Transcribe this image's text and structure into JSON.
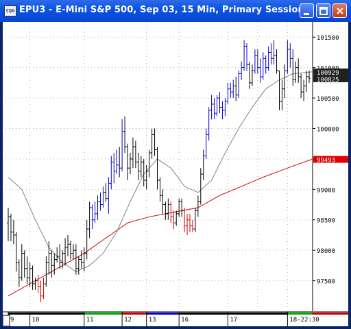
{
  "window": {
    "title": "EPU3 - E-Mini S&P 500, Sep 03, 15 Min, Primary Session",
    "app_icon_text": "CQG",
    "buttons": [
      "minimize",
      "maximize",
      "close"
    ]
  },
  "colors": {
    "up_bar": "#0000cc",
    "neutral_bar": "#000000",
    "down_bar": "#cc0000",
    "moving_avg_short": "#808080",
    "moving_avg_long": "#cc0000",
    "axis_highlight_last": "#202020",
    "axis_highlight_ma": "#e00000"
  },
  "chart_data": {
    "type": "candlestick-bars",
    "title": "EPU3 - E-Mini S&P 500, Sep 03, 15 Min, Primary Session",
    "y_ticks": [
      "101500",
      "101000",
      "100500",
      "100000",
      "99500",
      "99000",
      "98500",
      "98000",
      "97500"
    ],
    "y_tick_values": [
      101500,
      101000,
      100500,
      100000,
      99500,
      99000,
      98500,
      98000,
      97500
    ],
    "ylim": [
      97000,
      101750
    ],
    "x_ticks": [
      "9",
      "10",
      "11",
      "12",
      "13",
      "16",
      "17",
      "18-22:30"
    ],
    "x_session_colors": [
      "#000000",
      "#000000",
      "#00b000",
      "#cc0000",
      "#0000cc",
      "#000000",
      "#000000",
      "#00b000"
    ],
    "price_labels": [
      {
        "text": "100929",
        "value": 100929,
        "style": "dark"
      },
      {
        "text": "100825",
        "value": 100825,
        "style": "dark"
      },
      {
        "text": "99493",
        "value": 99493,
        "style": "red"
      }
    ],
    "bars": [
      [
        98450,
        98700,
        98150,
        98550,
        "k"
      ],
      [
        98550,
        98600,
        98150,
        98300,
        "k"
      ],
      [
        98300,
        98500,
        98100,
        98250,
        "k"
      ],
      [
        98250,
        98300,
        97650,
        97800,
        "k"
      ],
      [
        97800,
        97850,
        97400,
        97550,
        "k"
      ],
      [
        97550,
        98100,
        97500,
        97950,
        "k"
      ],
      [
        97950,
        98000,
        97550,
        97700,
        "k"
      ],
      [
        97700,
        97900,
        97450,
        97550,
        "k"
      ],
      [
        97550,
        97800,
        97400,
        97700,
        "k"
      ],
      [
        97700,
        97750,
        97350,
        97450,
        "k"
      ],
      [
        97450,
        97550,
        97350,
        97500,
        "k"
      ],
      [
        97500,
        97600,
        97300,
        97400,
        "r"
      ],
      [
        97400,
        97500,
        97150,
        97250,
        "r"
      ],
      [
        97250,
        97550,
        97200,
        97450,
        "r"
      ],
      [
        97450,
        97900,
        97400,
        97800,
        "k"
      ],
      [
        97800,
        98150,
        97600,
        97950,
        "k"
      ],
      [
        97950,
        98000,
        97550,
        97750,
        "k"
      ],
      [
        97750,
        97950,
        97600,
        97850,
        "k"
      ],
      [
        97850,
        98050,
        97800,
        97900,
        "k"
      ],
      [
        97900,
        98100,
        97700,
        97800,
        "k"
      ],
      [
        97800,
        98000,
        97700,
        97950,
        "k"
      ],
      [
        97950,
        98200,
        97750,
        98050,
        "k"
      ],
      [
        98050,
        98250,
        97900,
        98100,
        "k"
      ],
      [
        98100,
        98150,
        97850,
        97950,
        "k"
      ],
      [
        97950,
        98100,
        97850,
        98000,
        "k"
      ],
      [
        98000,
        98100,
        97600,
        97700,
        "k"
      ],
      [
        97700,
        97900,
        97600,
        97850,
        "k"
      ],
      [
        97850,
        98000,
        97700,
        97800,
        "k"
      ],
      [
        97800,
        98050,
        97650,
        97950,
        "k"
      ],
      [
        97950,
        98500,
        97850,
        98350,
        "k"
      ],
      [
        98350,
        98800,
        98200,
        98700,
        "k"
      ],
      [
        98700,
        98750,
        98350,
        98500,
        "b"
      ],
      [
        98500,
        98800,
        98450,
        98600,
        "b"
      ],
      [
        98600,
        98900,
        98500,
        98800,
        "b"
      ],
      [
        98800,
        98950,
        98650,
        98750,
        "b"
      ],
      [
        98750,
        99050,
        98700,
        98950,
        "b"
      ],
      [
        98950,
        99100,
        98800,
        98850,
        "k"
      ],
      [
        98850,
        99200,
        98600,
        99100,
        "b"
      ],
      [
        99100,
        99550,
        99000,
        99450,
        "b"
      ],
      [
        99450,
        99600,
        99100,
        99300,
        "b"
      ],
      [
        99300,
        99650,
        99250,
        99400,
        "b"
      ],
      [
        99400,
        99700,
        99200,
        99350,
        "k"
      ],
      [
        99350,
        100150,
        99300,
        99950,
        "b"
      ],
      [
        99950,
        100200,
        99600,
        99700,
        "k"
      ],
      [
        99700,
        99750,
        99150,
        99350,
        "k"
      ],
      [
        99350,
        99600,
        99250,
        99500,
        "k"
      ],
      [
        99500,
        99850,
        99350,
        99700,
        "k"
      ],
      [
        99700,
        99800,
        99350,
        99450,
        "k"
      ],
      [
        99450,
        99600,
        99150,
        99300,
        "k"
      ],
      [
        99300,
        99550,
        99200,
        99450,
        "k"
      ],
      [
        99450,
        99500,
        99050,
        99150,
        "k"
      ],
      [
        99150,
        99400,
        99000,
        99300,
        "k"
      ],
      [
        99300,
        99650,
        99200,
        99600,
        "k"
      ],
      [
        99600,
        100000,
        99500,
        99900,
        "k"
      ],
      [
        99900,
        100000,
        99550,
        99650,
        "k"
      ],
      [
        99650,
        99700,
        99000,
        99150,
        "k"
      ],
      [
        99150,
        99200,
        98800,
        98900,
        "k"
      ],
      [
        98900,
        99000,
        98600,
        98750,
        "k"
      ],
      [
        98750,
        98800,
        98500,
        98600,
        "k"
      ],
      [
        98600,
        98850,
        98500,
        98750,
        "k"
      ],
      [
        98750,
        98800,
        98450,
        98550,
        "r"
      ],
      [
        98550,
        98650,
        98350,
        98450,
        "r"
      ],
      [
        98450,
        98650,
        98400,
        98600,
        "k"
      ],
      [
        98600,
        98850,
        98550,
        98800,
        "k"
      ],
      [
        98800,
        98850,
        98550,
        98650,
        "k"
      ],
      [
        98650,
        98700,
        98300,
        98400,
        "r"
      ],
      [
        98400,
        98600,
        98250,
        98500,
        "r"
      ],
      [
        98500,
        98600,
        98300,
        98400,
        "r"
      ],
      [
        98400,
        98500,
        98300,
        98350,
        "r"
      ],
      [
        98350,
        98700,
        98300,
        98650,
        "k"
      ],
      [
        98650,
        98900,
        98550,
        98800,
        "k"
      ],
      [
        98800,
        99350,
        98750,
        99250,
        "k"
      ],
      [
        99250,
        99650,
        99150,
        99550,
        "k"
      ],
      [
        99550,
        100000,
        99500,
        99900,
        "b"
      ],
      [
        99900,
        100350,
        99800,
        100300,
        "b"
      ],
      [
        100300,
        100550,
        100150,
        100400,
        "b"
      ],
      [
        100400,
        100500,
        100150,
        100250,
        "b"
      ],
      [
        100250,
        100550,
        100200,
        100500,
        "b"
      ],
      [
        100500,
        100600,
        100250,
        100350,
        "b"
      ],
      [
        100350,
        100450,
        100150,
        100300,
        "b"
      ],
      [
        100300,
        100500,
        100200,
        100450,
        "b"
      ],
      [
        100450,
        100750,
        100400,
        100650,
        "b"
      ],
      [
        100650,
        100750,
        100500,
        100600,
        "b"
      ],
      [
        100600,
        100800,
        100500,
        100700,
        "b"
      ],
      [
        100700,
        100850,
        100450,
        100550,
        "k"
      ],
      [
        100550,
        100950,
        100500,
        100900,
        "b"
      ],
      [
        100900,
        101100,
        100800,
        101000,
        "b"
      ],
      [
        101000,
        101450,
        100950,
        101350,
        "b"
      ],
      [
        101350,
        101400,
        100950,
        101050,
        "b"
      ],
      [
        101050,
        101100,
        100650,
        100750,
        "k"
      ],
      [
        100750,
        101050,
        100700,
        100950,
        "k"
      ],
      [
        100950,
        101300,
        100900,
        101200,
        "b"
      ],
      [
        101200,
        101300,
        100900,
        101000,
        "b"
      ],
      [
        101000,
        101150,
        100750,
        100850,
        "b"
      ],
      [
        100850,
        101250,
        100800,
        101150,
        "b"
      ],
      [
        101150,
        101200,
        100900,
        101000,
        "b"
      ],
      [
        101000,
        101350,
        100950,
        101250,
        "b"
      ],
      [
        101250,
        101400,
        101050,
        101150,
        "b"
      ],
      [
        101150,
        101450,
        101050,
        101200,
        "b"
      ],
      [
        101200,
        101300,
        100900,
        100950,
        "k"
      ],
      [
        100950,
        100950,
        100300,
        100450,
        "k"
      ],
      [
        100450,
        100800,
        100300,
        100650,
        "k"
      ],
      [
        100650,
        101050,
        100500,
        100950,
        "k"
      ],
      [
        100950,
        101450,
        100900,
        101300,
        "b"
      ],
      [
        101300,
        101400,
        101000,
        101150,
        "b"
      ],
      [
        101150,
        101300,
        100700,
        100800,
        "k"
      ],
      [
        100800,
        101100,
        100750,
        101000,
        "k"
      ],
      [
        101000,
        101150,
        100750,
        100850,
        "k"
      ],
      [
        100850,
        100900,
        100500,
        100600,
        "k"
      ],
      [
        100600,
        100800,
        100450,
        100700,
        "k"
      ],
      [
        100700,
        100950,
        100600,
        100850,
        "k"
      ],
      [
        100850,
        100950,
        100750,
        100825,
        "k"
      ]
    ],
    "ma_short": [
      [
        0,
        99200
      ],
      [
        5,
        99000
      ],
      [
        10,
        98500
      ],
      [
        15,
        98050
      ],
      [
        20,
        97800
      ],
      [
        25,
        97650
      ],
      [
        30,
        97750
      ],
      [
        35,
        97950
      ],
      [
        40,
        98300
      ],
      [
        45,
        98800
      ],
      [
        50,
        99250
      ],
      [
        55,
        99500
      ],
      [
        60,
        99350
      ],
      [
        65,
        99050
      ],
      [
        70,
        98950
      ],
      [
        75,
        99150
      ],
      [
        80,
        99600
      ],
      [
        85,
        100000
      ],
      [
        90,
        100350
      ],
      [
        95,
        100650
      ],
      [
        100,
        100800
      ],
      [
        105,
        100900
      ],
      [
        112,
        100929
      ]
    ],
    "ma_long": [
      [
        0,
        97250
      ],
      [
        8,
        97450
      ],
      [
        14,
        97600
      ],
      [
        20,
        97750
      ],
      [
        28,
        97950
      ],
      [
        36,
        98200
      ],
      [
        44,
        98450
      ],
      [
        52,
        98550
      ],
      [
        58,
        98600
      ],
      [
        64,
        98650
      ],
      [
        70,
        98700
      ],
      [
        78,
        98900
      ],
      [
        86,
        99050
      ],
      [
        94,
        99200
      ],
      [
        100,
        99300
      ],
      [
        106,
        99400
      ],
      [
        112,
        99493
      ]
    ]
  }
}
